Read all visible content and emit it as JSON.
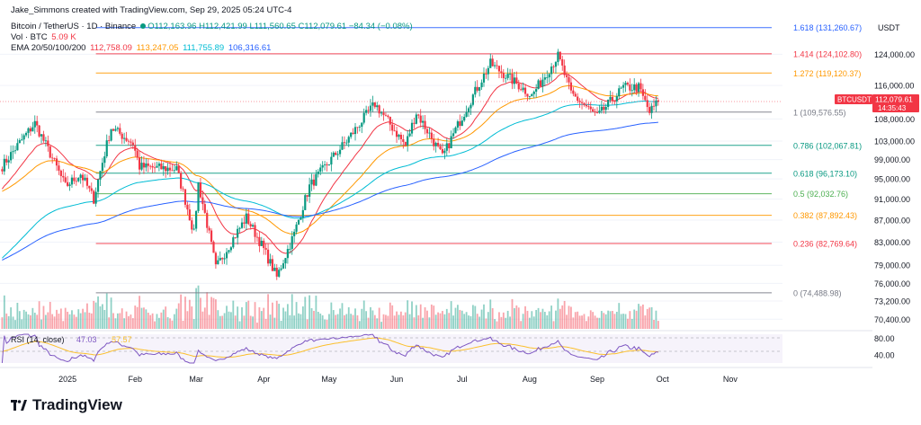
{
  "header": {
    "credit": "Jake_Simmons created with TradingView.com, Sep 29, 2025 05:24 UTC-4",
    "symbol": "Bitcoin / TetherUS · 1D · Binance",
    "ohlc": "O112,163.96 H112,421.99 L111,560.65 C112,079.61 −84.34 (−0.08%)",
    "vol_label": "Vol · BTC",
    "vol_value": "5.09 K",
    "ema_label": "EMA 20/50/100/200",
    "ema20": "112,758.09",
    "ema50": "113,247.05",
    "ema100": "111,755.89",
    "ema200": "106,316.61"
  },
  "price_axis": {
    "currency": "USDT",
    "ticks": [
      "124,000.00",
      "116,000.00",
      "108,000.00",
      "103,000.00",
      "99,000.00",
      "95,000.00",
      "91,000.00",
      "87,000.00",
      "83,000.00",
      "79,000.00",
      "76,000.00",
      "73,200.00",
      "70,400.00"
    ]
  },
  "rsi_axis": {
    "ticks": [
      "80.00",
      "40.00"
    ]
  },
  "rsi": {
    "label": "RSI (14, close)",
    "v1": "47.03",
    "v2": "57.57"
  },
  "time_axis": {
    "labels": [
      "2025",
      "Feb",
      "Mar",
      "Apr",
      "May",
      "Jun",
      "Jul",
      "Aug",
      "Sep",
      "Oct",
      "Nov"
    ]
  },
  "price_badge": {
    "symbol": "BTCUSDT",
    "price": "112,079.61",
    "countdown": "14:35:43"
  },
  "fib_levels": [
    {
      "label": "1.618 (131,260.67)",
      "ratio": 1.618,
      "price": 131260.67,
      "color": "#2962ff"
    },
    {
      "label": "1.414 (124,102.80)",
      "ratio": 1.414,
      "price": 124102.8,
      "color": "#f23645"
    },
    {
      "label": "1.272 (119,120.37)",
      "ratio": 1.272,
      "price": 119120.37,
      "color": "#ff9800"
    },
    {
      "label": "1 (109,576.55)",
      "ratio": 1,
      "price": 109576.55,
      "color": "#787b86"
    },
    {
      "label": "0.786 (102,067.81)",
      "ratio": 0.786,
      "price": 102067.81,
      "color": "#089981"
    },
    {
      "label": "0.618 (96,173.10)",
      "ratio": 0.618,
      "price": 96173.1,
      "color": "#089981"
    },
    {
      "label": "0.5 (92,032.76)",
      "ratio": 0.5,
      "price": 92032.76,
      "color": "#4caf50"
    },
    {
      "label": "0.382 (87,892.43)",
      "ratio": 0.382,
      "price": 87892.43,
      "color": "#ff9800"
    },
    {
      "label": "0.236 (82,769.64)",
      "ratio": 0.236,
      "price": 82769.64,
      "color": "#f23645"
    },
    {
      "label": "0 (74,488.98)",
      "ratio": 0,
      "price": 74488.98,
      "color": "#787b86"
    }
  ],
  "colors": {
    "up": "#089981",
    "down": "#f23645",
    "ema20": "#f23645",
    "ema50": "#ff9800",
    "ema100": "#00bcd4",
    "ema200": "#2962ff",
    "rsi": "#7e57c2",
    "rsi_ma": "#fbc02d"
  },
  "branding": {
    "name": "TradingView"
  },
  "chart_data": {
    "type": "candlestick",
    "title": "Bitcoin / TetherUS · 1D · Binance",
    "x_range": [
      "2024-12-01",
      "2025-11-25"
    ],
    "y_scale": "log",
    "ylim": [
      69500,
      134500
    ],
    "price_anchors": [
      {
        "date": "2024-12-01",
        "price": 97000
      },
      {
        "date": "2024-12-17",
        "price": 107000
      },
      {
        "date": "2024-12-31",
        "price": 93500
      },
      {
        "date": "2025-01-07",
        "price": 96000
      },
      {
        "date": "2025-01-13",
        "price": 91000
      },
      {
        "date": "2025-01-21",
        "price": 106000
      },
      {
        "date": "2025-01-31",
        "price": 102500
      },
      {
        "date": "2025-02-03",
        "price": 97500
      },
      {
        "date": "2025-02-20",
        "price": 97000
      },
      {
        "date": "2025-02-28",
        "price": 84500
      },
      {
        "date": "2025-03-02",
        "price": 94000
      },
      {
        "date": "2025-03-10",
        "price": 78500
      },
      {
        "date": "2025-03-24",
        "price": 87500
      },
      {
        "date": "2025-03-31",
        "price": 82500
      },
      {
        "date": "2025-04-07",
        "price": 77000
      },
      {
        "date": "2025-04-15",
        "price": 84500
      },
      {
        "date": "2025-04-22",
        "price": 93500
      },
      {
        "date": "2025-05-09",
        "price": 103000
      },
      {
        "date": "2025-05-22",
        "price": 111500
      },
      {
        "date": "2025-06-05",
        "price": 102000
      },
      {
        "date": "2025-06-10",
        "price": 109500
      },
      {
        "date": "2025-06-22",
        "price": 99500
      },
      {
        "date": "2025-06-30",
        "price": 107500
      },
      {
        "date": "2025-07-14",
        "price": 121500
      },
      {
        "date": "2025-08-02",
        "price": 113500
      },
      {
        "date": "2025-08-14",
        "price": 123500
      },
      {
        "date": "2025-08-20",
        "price": 114000
      },
      {
        "date": "2025-09-01",
        "price": 108500
      },
      {
        "date": "2025-09-13",
        "price": 115500
      },
      {
        "date": "2025-09-20",
        "price": 115500
      },
      {
        "date": "2025-09-25",
        "price": 109500
      },
      {
        "date": "2025-09-29",
        "price": 112079.61
      }
    ],
    "ema_end": {
      "ema20": 112758.09,
      "ema50": 113247.05,
      "ema100": 111755.89,
      "ema200": 106316.61
    },
    "last_close": 112079.61
  }
}
